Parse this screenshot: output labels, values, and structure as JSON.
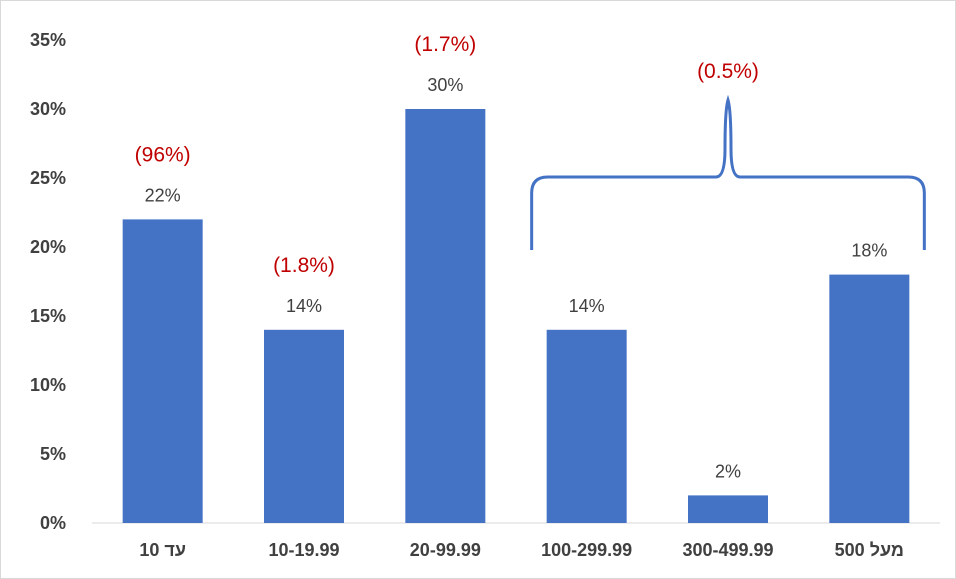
{
  "chart_data": {
    "type": "bar",
    "categories": [
      "עד 10",
      "10-19.99",
      "20-99.99",
      "100-299.99",
      "300-499.99",
      "מעל 500"
    ],
    "values": [
      22,
      14,
      30,
      14,
      2,
      18
    ],
    "value_labels": [
      "22%",
      "14%",
      "30%",
      "14%",
      "2%",
      "18%"
    ],
    "annotations": [
      "(96%)",
      "(1.8%)",
      "(1.7%)",
      "",
      "",
      ""
    ],
    "group_annotation": {
      "label": "(0.5%)",
      "from_category": 3,
      "to_category": 5
    },
    "y_ticks": [
      "0%",
      "5%",
      "10%",
      "15%",
      "20%",
      "25%",
      "30%",
      "35%"
    ],
    "ylim": [
      0,
      35
    ],
    "grid": false,
    "legend": "none",
    "bar_color": "#4472c4",
    "annotation_color": "#c00000"
  }
}
